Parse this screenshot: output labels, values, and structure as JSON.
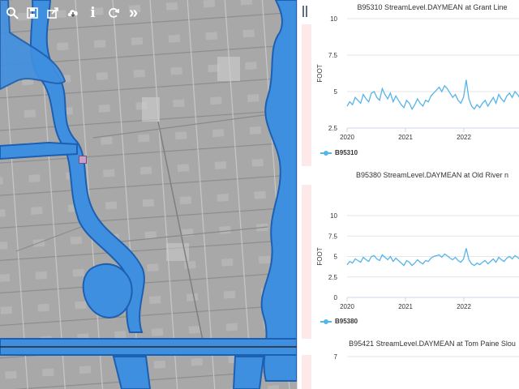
{
  "toolbar": {
    "buttons": [
      {
        "icon": "search-icon"
      },
      {
        "icon": "save-icon"
      },
      {
        "icon": "export-icon"
      },
      {
        "icon": "cloud-download-icon"
      },
      {
        "icon": "info-icon"
      },
      {
        "icon": "refresh-icon"
      },
      {
        "icon": "expand-icon"
      }
    ],
    "info_glyph": "i",
    "expand_glyph": "»"
  },
  "colors": {
    "water": "#3f8fe0",
    "water_edge": "#1d5fb0",
    "series": "#56b4e9",
    "marker": "#c9a0c8"
  },
  "charts": [
    {
      "title": "B95310 StreamLevel.DAYMEAN at Grant Line",
      "ylabel": "FOOT",
      "legend": "B95310",
      "chart_data": {
        "type": "line",
        "x_ticks": [
          "2020",
          "2021",
          "2022",
          "2"
        ],
        "y_ticks": [
          "10",
          "7.5",
          "5",
          "2.5"
        ],
        "ylim": [
          2.5,
          10
        ],
        "series": [
          {
            "name": "B95310",
            "values": [
              4.0,
              4.3,
              4.1,
              4.6,
              4.4,
              4.2,
              4.8,
              4.5,
              4.3,
              4.9,
              5.0,
              4.6,
              4.4,
              5.2,
              4.8,
              4.5,
              4.9,
              4.3,
              4.7,
              4.4,
              4.1,
              3.9,
              4.4,
              4.2,
              3.8,
              4.1,
              4.5,
              4.2,
              4.0,
              4.4,
              4.3,
              4.7,
              4.9,
              5.1,
              5.3,
              5.0,
              5.4,
              5.2,
              4.9,
              4.6,
              4.8,
              4.4,
              4.2,
              4.6,
              5.8,
              4.5,
              4.0,
              3.8,
              4.1,
              3.9,
              4.2,
              4.4,
              4.0,
              4.3,
              4.6,
              4.2,
              4.8,
              4.5,
              4.3,
              4.7,
              4.9,
              4.6,
              5.0,
              4.8,
              4.5,
              4.9
            ]
          }
        ]
      }
    },
    {
      "title": "B95380 StreamLevel.DAYMEAN at Old River n",
      "ylabel": "FOOT",
      "legend": "B95380",
      "chart_data": {
        "type": "line",
        "x_ticks": [
          "2020",
          "2021",
          "2022",
          "2"
        ],
        "y_ticks": [
          "10",
          "7.5",
          "5",
          "2.5",
          "0"
        ],
        "ylim": [
          0,
          10
        ],
        "series": [
          {
            "name": "B95380",
            "values": [
              4.0,
              4.4,
              4.2,
              4.7,
              4.5,
              4.3,
              4.9,
              4.6,
              4.4,
              5.0,
              5.1,
              4.7,
              4.5,
              5.2,
              4.9,
              4.6,
              5.0,
              4.4,
              4.8,
              4.5,
              4.2,
              3.9,
              4.5,
              4.3,
              3.9,
              4.2,
              4.6,
              4.3,
              4.1,
              4.5,
              4.4,
              4.8,
              5.0,
              5.1,
              5.2,
              4.9,
              5.3,
              5.1,
              4.8,
              4.6,
              4.9,
              4.5,
              4.3,
              4.7,
              6.0,
              4.6,
              4.1,
              3.9,
              4.2,
              4.0,
              4.3,
              4.5,
              4.1,
              4.4,
              4.7,
              4.3,
              4.9,
              4.6,
              4.4,
              4.8,
              5.0,
              4.7,
              5.1,
              4.9,
              4.6,
              5.0
            ]
          }
        ]
      }
    },
    {
      "title": "B95421 StreamLevel.DAYMEAN at Tom Paine Slou",
      "ylabel": "",
      "legend": "",
      "chart_data": {
        "type": "line",
        "x_ticks": [],
        "y_ticks": [
          "7"
        ],
        "ylim": [
          0,
          7
        ],
        "series": []
      }
    }
  ]
}
